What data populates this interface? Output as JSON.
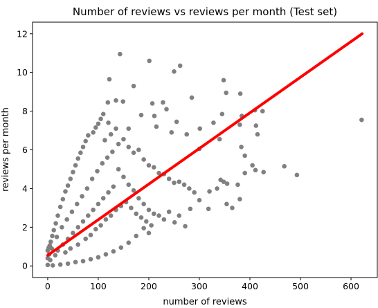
{
  "chart_data": {
    "type": "scatter",
    "title": "Number of reviews vs reviews per month (Test set)",
    "xlabel": "number of reviews",
    "ylabel": "reviews per month",
    "xlim": [
      -30,
      652
    ],
    "ylim": [
      -0.6,
      12.6
    ],
    "xticks": [
      0,
      100,
      200,
      300,
      400,
      500,
      600
    ],
    "yticks": [
      0,
      2,
      4,
      6,
      8,
      10,
      12
    ],
    "grid": false,
    "point_color": "#808080",
    "fit_line_color": "#ff0000",
    "series": [
      {
        "kind": "scatter",
        "points": [
          [
            143,
            10.95
          ],
          [
            201,
            10.6
          ],
          [
            250,
            10.05
          ],
          [
            262,
            10.35
          ],
          [
            122,
            9.65
          ],
          [
            170,
            9.3
          ],
          [
            348,
            9.6
          ],
          [
            353,
            8.95
          ],
          [
            381,
            8.9
          ],
          [
            135,
            8.55
          ],
          [
            149,
            8.5
          ],
          [
            119,
            8.45
          ],
          [
            207,
            8.4
          ],
          [
            228,
            8.45
          ],
          [
            285,
            8.7
          ],
          [
            410,
            8.05
          ],
          [
            425,
            8.0
          ],
          [
            185,
            7.8
          ],
          [
            211,
            7.75
          ],
          [
            235,
            8.1
          ],
          [
            255,
            7.45
          ],
          [
            301,
            7.1
          ],
          [
            328,
            7.4
          ],
          [
            345,
            7.85
          ],
          [
            380,
            7.3
          ],
          [
            384,
            7.75
          ],
          [
            412,
            7.25
          ],
          [
            621,
            7.55
          ],
          [
            160,
            7.1
          ],
          [
            215,
            7.2
          ],
          [
            245,
            6.9
          ],
          [
            275,
            6.8
          ],
          [
            300,
            6.05
          ],
          [
            340,
            6.55
          ],
          [
            383,
            6.15
          ],
          [
            415,
            6.8
          ],
          [
            390,
            5.7
          ],
          [
            405,
            5.2
          ],
          [
            468,
            5.15
          ],
          [
            493,
            4.7
          ],
          [
            411,
            4.95
          ],
          [
            427,
            4.85
          ],
          [
            376,
            4.2
          ],
          [
            390,
            4.8
          ],
          [
            355,
            4.25
          ],
          [
            342,
            4.45
          ],
          [
            335,
            4.0
          ],
          [
            320,
            3.85
          ],
          [
            300,
            3.4
          ],
          [
            318,
            2.95
          ],
          [
            354,
            3.2
          ],
          [
            365,
            3.0
          ],
          [
            380,
            3.45
          ],
          [
            348,
            4.35
          ],
          [
            282,
            2.95
          ],
          [
            260,
            2.6
          ],
          [
            230,
            2.4
          ],
          [
            251,
            2.25
          ],
          [
            272,
            2.05
          ],
          [
            200,
            1.7
          ],
          [
            190,
            1.95
          ],
          [
            175,
            1.55
          ],
          [
            160,
            1.2
          ],
          [
            145,
            0.95
          ],
          [
            130,
            0.75
          ],
          [
            115,
            0.6
          ],
          [
            100,
            0.45
          ],
          [
            85,
            0.35
          ],
          [
            70,
            0.25
          ],
          [
            55,
            0.2
          ],
          [
            40,
            0.12
          ],
          [
            25,
            0.07
          ],
          [
            10,
            0.03
          ],
          [
            0,
            0.05
          ],
          [
            0,
            0.4
          ],
          [
            0,
            0.8
          ],
          [
            2,
            0.95
          ],
          [
            4,
            1.05
          ],
          [
            6,
            1.25
          ],
          [
            9,
            1.55
          ],
          [
            12,
            1.85
          ],
          [
            16,
            2.2
          ],
          [
            20,
            2.6
          ],
          [
            25,
            3.05
          ],
          [
            30,
            3.45
          ],
          [
            35,
            3.85
          ],
          [
            40,
            4.15
          ],
          [
            45,
            4.5
          ],
          [
            50,
            4.85
          ],
          [
            55,
            5.2
          ],
          [
            60,
            5.55
          ],
          [
            65,
            5.85
          ],
          [
            70,
            6.15
          ],
          [
            75,
            6.45
          ],
          [
            80,
            6.75
          ],
          [
            90,
            6.9
          ],
          [
            95,
            7.15
          ],
          [
            100,
            7.35
          ],
          [
            105,
            7.6
          ],
          [
            110,
            7.85
          ],
          [
            120,
            7.4
          ],
          [
            113,
            6.5
          ],
          [
            125,
            6.8
          ],
          [
            135,
            7.1
          ],
          [
            140,
            6.3
          ],
          [
            150,
            6.55
          ],
          [
            160,
            6.15
          ],
          [
            170,
            5.85
          ],
          [
            180,
            6.0
          ],
          [
            190,
            5.5
          ],
          [
            200,
            5.2
          ],
          [
            210,
            5.1
          ],
          [
            220,
            4.8
          ],
          [
            230,
            4.75
          ],
          [
            240,
            4.5
          ],
          [
            250,
            4.3
          ],
          [
            260,
            4.35
          ],
          [
            270,
            4.2
          ],
          [
            280,
            4.0
          ],
          [
            290,
            3.8
          ],
          [
            140,
            5.0
          ],
          [
            150,
            4.6
          ],
          [
            160,
            4.2
          ],
          [
            170,
            3.9
          ],
          [
            180,
            3.5
          ],
          [
            190,
            3.2
          ],
          [
            200,
            2.9
          ],
          [
            210,
            2.7
          ],
          [
            220,
            2.6
          ],
          [
            240,
            2.8
          ],
          [
            130,
            4.1
          ],
          [
            120,
            3.8
          ],
          [
            110,
            3.5
          ],
          [
            100,
            3.2
          ],
          [
            90,
            2.9
          ],
          [
            80,
            2.6
          ],
          [
            70,
            2.3
          ],
          [
            60,
            2.0
          ],
          [
            50,
            1.7
          ],
          [
            40,
            1.4
          ],
          [
            30,
            1.1
          ],
          [
            20,
            0.8
          ],
          [
            15,
            0.55
          ],
          [
            35,
            0.7
          ],
          [
            45,
            0.9
          ],
          [
            60,
            1.1
          ],
          [
            75,
            1.4
          ],
          [
            85,
            1.6
          ],
          [
            95,
            1.9
          ],
          [
            105,
            2.1
          ],
          [
            115,
            2.4
          ],
          [
            125,
            2.6
          ],
          [
            135,
            2.9
          ],
          [
            145,
            3.1
          ],
          [
            155,
            3.3
          ],
          [
            165,
            3.0
          ],
          [
            175,
            2.7
          ],
          [
            185,
            2.5
          ],
          [
            195,
            2.3
          ],
          [
            205,
            2.1
          ],
          [
            88,
            4.5
          ],
          [
            98,
            4.9
          ],
          [
            108,
            5.3
          ],
          [
            118,
            5.6
          ],
          [
            128,
            5.9
          ],
          [
            78,
            4.0
          ],
          [
            68,
            3.6
          ],
          [
            58,
            3.2
          ],
          [
            48,
            2.8
          ],
          [
            38,
            2.4
          ],
          [
            28,
            2.0
          ],
          [
            18,
            1.5
          ],
          [
            8,
            0.9
          ],
          [
            3,
            0.6
          ],
          [
            5,
            0.3
          ]
        ]
      },
      {
        "kind": "line",
        "x": [
          0,
          622
        ],
        "y": [
          0.55,
          12.0
        ]
      }
    ]
  }
}
